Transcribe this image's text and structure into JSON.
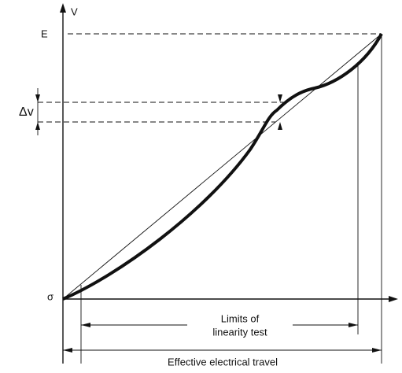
{
  "labels": {
    "v_axis": "V",
    "e_level": "E",
    "delta_v": "Δv",
    "origin": "σ",
    "limits_line1": "Limits of",
    "limits_line2": "linearity test",
    "travel": "Effective electrical travel"
  }
}
